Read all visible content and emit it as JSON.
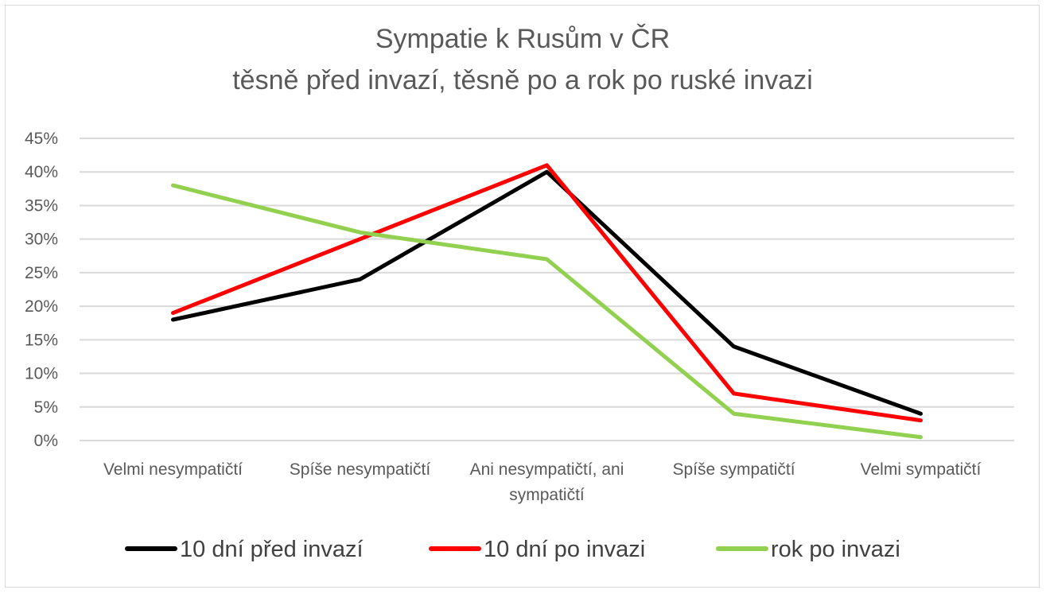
{
  "chart_data": {
    "type": "line",
    "title": [
      "Sympatie k Rusům v ČR",
      "těsně před invazí, těsně po a rok po ruské invazi"
    ],
    "categories": [
      [
        "Velmi nesympatičtí"
      ],
      [
        "Spíše nesympatičtí"
      ],
      [
        "Ani nesympatičtí, ani",
        "sympatičtí"
      ],
      [
        "Spíše sympatičtí"
      ],
      [
        "Velmi sympatičtí"
      ]
    ],
    "series": [
      {
        "name": "10 dní před invazí",
        "color": "#000000",
        "values": [
          18,
          24,
          40,
          14,
          4
        ]
      },
      {
        "name": "10 dní po invazi",
        "color": "#ff0000",
        "values": [
          19,
          30,
          41,
          7,
          3
        ]
      },
      {
        "name": "rok po invazi",
        "color": "#92d050",
        "values": [
          38,
          31,
          27,
          4,
          0.5
        ]
      }
    ],
    "ylim": [
      0,
      45
    ],
    "yticks": [
      "0%",
      "5%",
      "10%",
      "15%",
      "20%",
      "25%",
      "30%",
      "35%",
      "40%",
      "45%"
    ],
    "xlabel": "",
    "ylabel": "",
    "grid": true,
    "legend_position": "bottom"
  }
}
